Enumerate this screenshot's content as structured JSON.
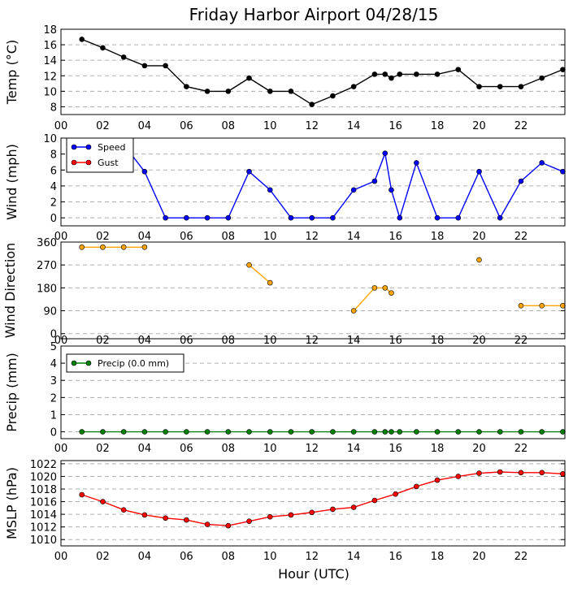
{
  "title": "Friday Harbor Airport 04/28/15",
  "xlabel": "Hour (UTC)",
  "x_ticks": [
    "00",
    "02",
    "04",
    "06",
    "08",
    "10",
    "12",
    "14",
    "16",
    "18",
    "20",
    "22"
  ],
  "colors": {
    "temp": "#000000",
    "speed": "#0000ff",
    "gust": "#ff0000",
    "direction": "#ffa500",
    "precip": "#008000",
    "mslp": "#ff0000",
    "grid": "#b0b0b0"
  },
  "chart_data": [
    {
      "type": "line",
      "ylabel": "Temp (°C)",
      "ylim": [
        7,
        18
      ],
      "yticks": [
        8,
        10,
        12,
        14,
        16,
        18
      ],
      "grid": true,
      "series": [
        {
          "color": "#000000",
          "x": [
            1,
            2,
            3,
            4,
            5,
            6,
            7,
            8,
            9,
            10,
            11,
            12,
            13,
            14,
            15,
            15.5,
            15.8,
            16.2,
            17,
            18,
            19,
            20,
            21,
            22,
            23,
            24
          ],
          "y": [
            16.7,
            15.6,
            14.4,
            13.3,
            13.3,
            10.6,
            10,
            10,
            11.7,
            10,
            10,
            8.3,
            9.4,
            10.6,
            12.2,
            12.2,
            11.7,
            12.2,
            12.2,
            12.2,
            12.8,
            10.6,
            10.6,
            10.6,
            11.7,
            12.8
          ]
        }
      ]
    },
    {
      "type": "line",
      "ylabel": "Wind (mph)",
      "ylim": [
        -1,
        10
      ],
      "yticks": [
        0,
        2,
        4,
        6,
        8,
        10
      ],
      "grid": true,
      "legend": {
        "position": "top-left",
        "entries": [
          {
            "label": "Speed",
            "color": "#0000ff"
          },
          {
            "label": "Gust",
            "color": "#ff0000"
          }
        ]
      },
      "series": [
        {
          "name": "Speed",
          "color": "#0000ff",
          "x": [
            1,
            2,
            3,
            4,
            5,
            6,
            7,
            8,
            9,
            10,
            11,
            12,
            13,
            14,
            15,
            15.5,
            15.8,
            16.2,
            17,
            18,
            19,
            20,
            21,
            22,
            23,
            24
          ],
          "y": [
            9.2,
            9.2,
            9.2,
            5.8,
            0,
            0,
            0,
            0,
            5.8,
            3.5,
            0,
            0,
            0,
            3.5,
            4.6,
            8.1,
            3.5,
            0,
            6.9,
            0,
            0,
            5.8,
            0,
            4.6,
            6.9,
            5.8
          ]
        },
        {
          "name": "Gust",
          "color": "#ff0000",
          "x": [],
          "y": []
        }
      ]
    },
    {
      "type": "line",
      "ylabel": "Wind Direction",
      "ylim": [
        -20,
        360
      ],
      "yticks": [
        0,
        90,
        180,
        270,
        360
      ],
      "grid": true,
      "series": [
        {
          "color": "#ffa500",
          "segments": [
            {
              "x": [
                1,
                2,
                3,
                4
              ],
              "y": [
                340,
                340,
                340,
                340
              ]
            },
            {
              "x": [
                9,
                10
              ],
              "y": [
                270,
                200
              ]
            },
            {
              "x": [
                14,
                15,
                15.5,
                15.8
              ],
              "y": [
                90,
                180,
                180,
                160
              ]
            },
            {
              "x": [
                20
              ],
              "y": [
                290
              ]
            },
            {
              "x": [
                22,
                23,
                24
              ],
              "y": [
                110,
                110,
                110
              ]
            }
          ]
        }
      ]
    },
    {
      "type": "line",
      "ylabel": "Precip (mm)",
      "ylim": [
        -0.4,
        5
      ],
      "yticks": [
        0,
        1,
        2,
        3,
        4,
        5
      ],
      "grid": true,
      "legend": {
        "position": "top-left",
        "entries": [
          {
            "label": "Precip (0.0 mm)",
            "color": "#008000"
          }
        ]
      },
      "series": [
        {
          "name": "Precip (0.0 mm)",
          "color": "#008000",
          "x": [
            1,
            2,
            3,
            4,
            5,
            6,
            7,
            8,
            9,
            10,
            11,
            12,
            13,
            14,
            15,
            15.5,
            15.8,
            16.2,
            17,
            18,
            19,
            20,
            21,
            22,
            23,
            24
          ],
          "y": [
            0,
            0,
            0,
            0,
            0,
            0,
            0,
            0,
            0,
            0,
            0,
            0,
            0,
            0,
            0,
            0,
            0,
            0,
            0,
            0,
            0,
            0,
            0,
            0,
            0,
            0
          ]
        }
      ]
    },
    {
      "type": "line",
      "ylabel": "MSLP (hPa)",
      "ylim": [
        1009,
        1022.5
      ],
      "yticks": [
        1010,
        1012,
        1014,
        1016,
        1018,
        1020,
        1022
      ],
      "grid": true,
      "series": [
        {
          "color": "#ff0000",
          "x": [
            1,
            2,
            3,
            4,
            5,
            6,
            7,
            8,
            9,
            10,
            11,
            12,
            13,
            14,
            15,
            16,
            17,
            18,
            19,
            20,
            21,
            22,
            23,
            24
          ],
          "y": [
            1017.1,
            1016,
            1014.7,
            1013.9,
            1013.4,
            1013.1,
            1012.4,
            1012.2,
            1012.9,
            1013.6,
            1013.9,
            1014.3,
            1014.8,
            1015.1,
            1016.2,
            1017.2,
            1018.4,
            1019.4,
            1020,
            1020.5,
            1020.7,
            1020.6,
            1020.6,
            1020.4
          ]
        }
      ]
    }
  ]
}
